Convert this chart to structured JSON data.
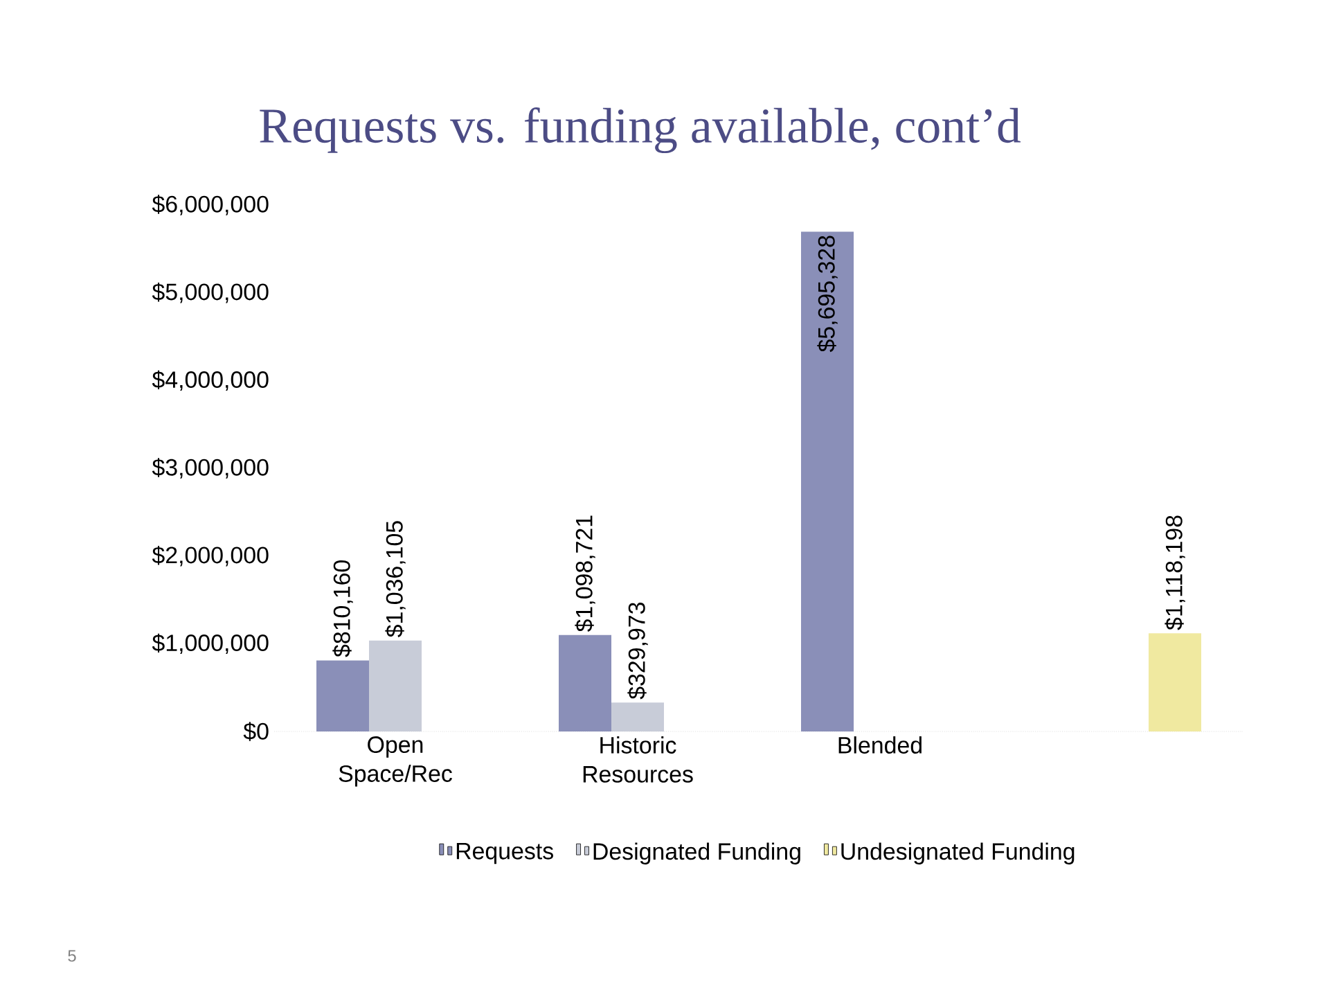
{
  "chart_data": {
    "type": "bar",
    "title": "Requests vs. funding available, cont’d",
    "categories": [
      "Open Space/Rec",
      "Historic Resources",
      "Blended",
      null
    ],
    "series": [
      {
        "name": "Requests",
        "color": "#8a8fb8",
        "values": [
          810160,
          1098721,
          5695328,
          null
        ],
        "value_labels": [
          "$810,160",
          "$1,098,721",
          "$5,695,328",
          null
        ]
      },
      {
        "name": "Designated Funding",
        "color": "#c8ccd8",
        "values": [
          1036105,
          329973,
          null,
          null
        ],
        "value_labels": [
          "$1,036,105",
          "$329,973",
          null,
          null
        ]
      },
      {
        "name": "Undesignated Funding",
        "color": "#f0e9a0",
        "values": [
          null,
          null,
          null,
          1118198
        ],
        "value_labels": [
          null,
          null,
          null,
          "$1,118,198"
        ]
      }
    ],
    "ylim": [
      0,
      6000000
    ],
    "yticks": [
      {
        "value": 0,
        "label": "$0"
      },
      {
        "value": 1000000,
        "label": "$1,000,000"
      },
      {
        "value": 2000000,
        "label": "$2,000,000"
      },
      {
        "value": 3000000,
        "label": "$3,000,000"
      },
      {
        "value": 4000000,
        "label": "$4,000,000"
      },
      {
        "value": 5000000,
        "label": "$5,000,000"
      },
      {
        "value": 6000000,
        "label": "$6,000,000"
      }
    ],
    "legend": "bottom",
    "annotations": [
      "5"
    ]
  }
}
